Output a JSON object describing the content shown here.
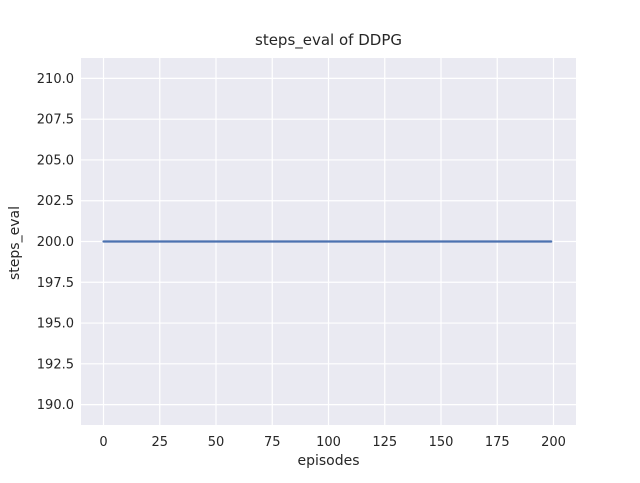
{
  "chart_data": {
    "type": "line",
    "title": "steps_eval of DDPG",
    "xlabel": "episodes",
    "ylabel": "steps_eval",
    "xlim": [
      -10,
      210
    ],
    "ylim": [
      188.75,
      211.25
    ],
    "xticks": [
      0,
      25,
      50,
      75,
      100,
      125,
      150,
      175,
      200
    ],
    "xtick_labels": [
      "0",
      "25",
      "50",
      "75",
      "100",
      "125",
      "150",
      "175",
      "200"
    ],
    "yticks": [
      190.0,
      192.5,
      195.0,
      197.5,
      200.0,
      202.5,
      205.0,
      207.5,
      210.0
    ],
    "ytick_labels": [
      "190.0",
      "192.5",
      "195.0",
      "197.5",
      "200.0",
      "202.5",
      "205.0",
      "207.5",
      "210.0"
    ],
    "grid": true,
    "legend": false,
    "series": [
      {
        "name": "steps_eval",
        "x": [
          0,
          199
        ],
        "y": [
          200,
          200
        ],
        "color": "#4c72b0"
      }
    ],
    "colors": {
      "figure_background": "#ffffff",
      "plot_background": "#eaeaf2",
      "grid": "#ffffff",
      "text": "#262626",
      "line": "#4c72b0"
    }
  }
}
